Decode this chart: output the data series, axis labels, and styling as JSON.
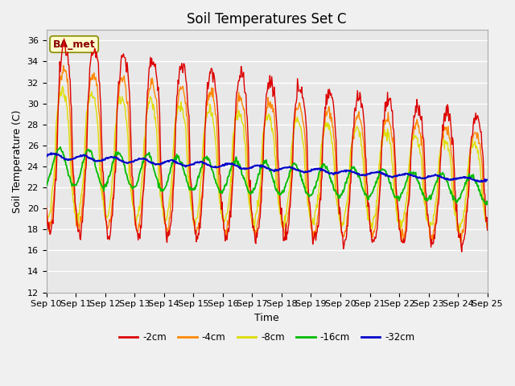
{
  "title": "Soil Temperatures Set C",
  "xlabel": "Time",
  "ylabel": "Soil Temperature (C)",
  "annotation": "BA_met",
  "ylim": [
    12,
    37
  ],
  "yticks": [
    12,
    14,
    16,
    18,
    20,
    22,
    24,
    26,
    28,
    30,
    32,
    34,
    36
  ],
  "x_labels": [
    "Sep 10",
    "Sep 11",
    "Sep 12",
    "Sep 13",
    "Sep 14",
    "Sep 15",
    "Sep 16",
    "Sep 17",
    "Sep 18",
    "Sep 19",
    "Sep 20",
    "Sep 21",
    "Sep 22",
    "Sep 23",
    "Sep 24",
    "Sep 25"
  ],
  "series_colors": [
    "#dd0000",
    "#ff8800",
    "#dddd00",
    "#00bb00",
    "#0000cc"
  ],
  "series_labels": [
    "-2cm",
    "-4cm",
    "-8cm",
    "-16cm",
    "-32cm"
  ],
  "fig_bg_color": "#f0f0f0",
  "plot_bg_color": "#e8e8e8",
  "grid_color": "#ffffff",
  "title_fontsize": 12,
  "label_fontsize": 9,
  "tick_fontsize": 8
}
